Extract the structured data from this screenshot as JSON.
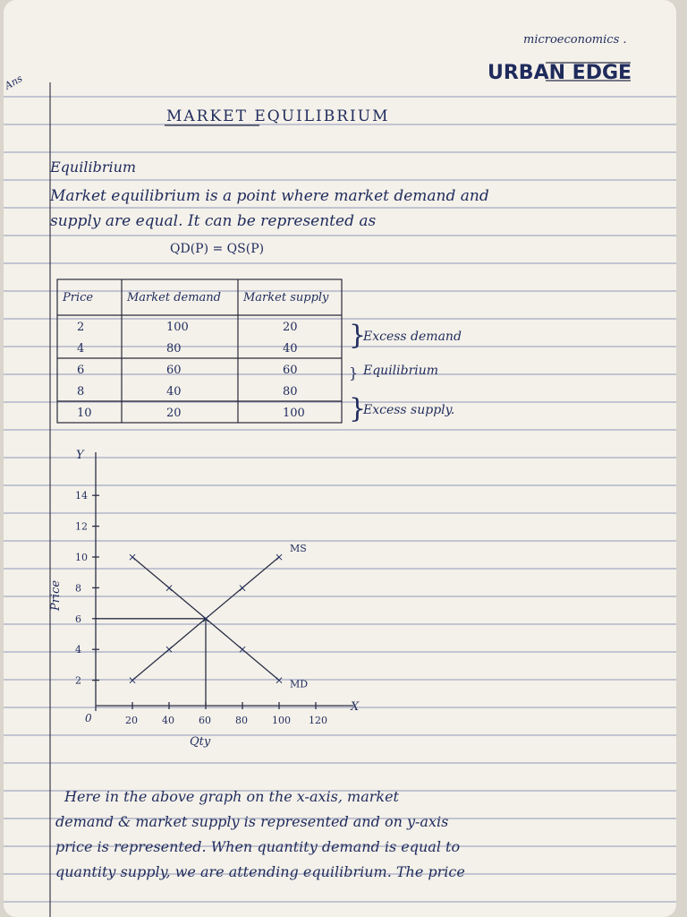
{
  "header": {
    "subject": "microeconomics .",
    "brand": "URBAN EDGE"
  },
  "margin_note": "Ans",
  "title": "MARKET    EQUILIBRIUM",
  "section_heading": "Equilibrium",
  "intro": [
    "Market equilibrium is a point where market demand and",
    "supply are equal. It can be represented as"
  ],
  "formula": "QD(P) = QS(P)",
  "table": {
    "columns": [
      "Price",
      "Market demand",
      "Market supply"
    ],
    "rows": [
      [
        2,
        100,
        20
      ],
      [
        4,
        80,
        40
      ],
      [
        6,
        60,
        60
      ],
      [
        8,
        40,
        80
      ],
      [
        10,
        20,
        100
      ]
    ]
  },
  "table_notes": [
    "Excess demand",
    "Equilibrium",
    "Excess supply."
  ],
  "graph": {
    "y_axis_label": "Price",
    "x_axis_label": "Qty",
    "y_axis_name": "Y",
    "x_axis_name": "X",
    "origin_label": "0",
    "xticks": [
      20,
      40,
      60,
      80,
      100,
      120
    ],
    "yticks": [
      2,
      4,
      6,
      8,
      10,
      12,
      14
    ],
    "series": [
      {
        "name": "MD",
        "x": [
          20,
          40,
          60,
          80,
          100
        ],
        "y": [
          10,
          8,
          6,
          4,
          2
        ]
      },
      {
        "name": "MS",
        "x": [
          20,
          40,
          60,
          80,
          100
        ],
        "y": [
          2,
          4,
          6,
          8,
          10
        ]
      }
    ]
  },
  "conclusion": [
    "Here in the above graph on the x-axis, market",
    "demand & market supply is represented and on y-axis",
    "price is represented. When quantity demand is equal to",
    "quantity supply, we are attending equilibrium. The price"
  ]
}
